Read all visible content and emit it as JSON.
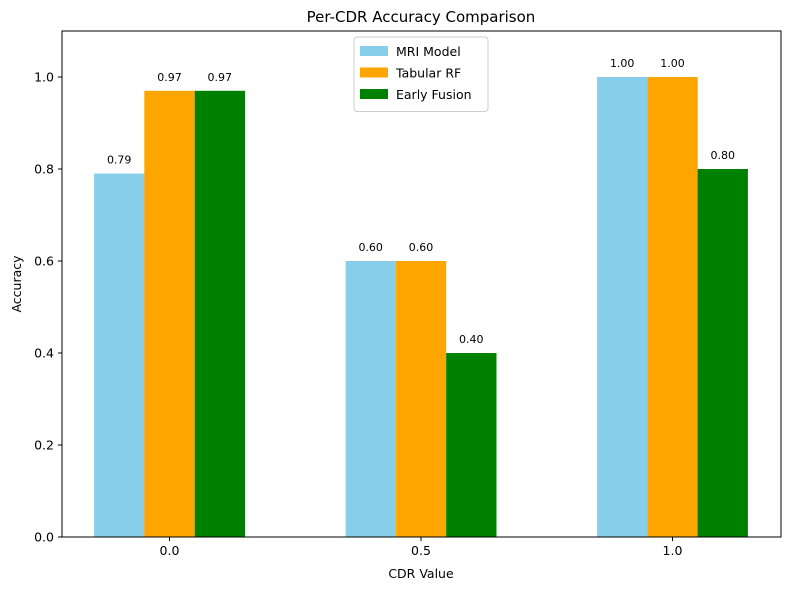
{
  "chart_data": {
    "type": "bar",
    "title": "Per-CDR Accuracy Comparison",
    "xlabel": "CDR Value",
    "ylabel": "Accuracy",
    "categories": [
      "0.0",
      "0.5",
      "1.0"
    ],
    "ylim": [
      0,
      1.1
    ],
    "yticks": [
      "0.0",
      "0.2",
      "0.4",
      "0.6",
      "0.8",
      "1.0"
    ],
    "grid": false,
    "legend_position": "top-center",
    "series": [
      {
        "name": "MRI Model",
        "color": "#87CEEB",
        "values": [
          0.79,
          0.6,
          1.0
        ],
        "labels": [
          "0.79",
          "0.60",
          "1.00"
        ]
      },
      {
        "name": "Tabular RF",
        "color": "#FFA500",
        "values": [
          0.97,
          0.6,
          1.0
        ],
        "labels": [
          "0.97",
          "0.60",
          "1.00"
        ]
      },
      {
        "name": "Early Fusion",
        "color": "#008000",
        "values": [
          0.97,
          0.4,
          0.8
        ],
        "labels": [
          "0.97",
          "0.40",
          "0.80"
        ]
      }
    ]
  }
}
